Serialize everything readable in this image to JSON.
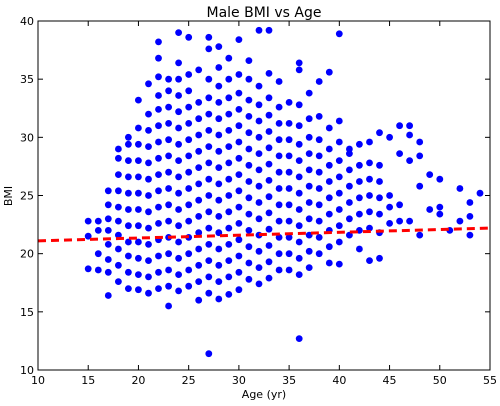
{
  "chart_data": {
    "type": "scatter",
    "title": "Male BMI vs Age",
    "xlabel": "Age (yr)",
    "ylabel": "BMI",
    "xlim": [
      10,
      55
    ],
    "ylim": [
      10,
      40
    ],
    "xticks": [
      "10",
      "15",
      "20",
      "25",
      "30",
      "35",
      "40",
      "45",
      "50",
      "55"
    ],
    "yticks": [
      "10",
      "15",
      "20",
      "25",
      "30",
      "35",
      "40"
    ],
    "grid": false,
    "legend": "none",
    "point_color": "#0000ff",
    "trend_color": "#ff0000",
    "points": [
      [
        15,
        18.7
      ],
      [
        15,
        21.5
      ],
      [
        15,
        22.8
      ],
      [
        16,
        18.6
      ],
      [
        16,
        20.0
      ],
      [
        16,
        22.0
      ],
      [
        16,
        22.8
      ],
      [
        17,
        16.4
      ],
      [
        17,
        18.4
      ],
      [
        17,
        19.5
      ],
      [
        17,
        20.8
      ],
      [
        17,
        22.0
      ],
      [
        17,
        23.0
      ],
      [
        17,
        24.2
      ],
      [
        17,
        25.4
      ],
      [
        18,
        17.6
      ],
      [
        18,
        19.0
      ],
      [
        18,
        20.4
      ],
      [
        18,
        21.6
      ],
      [
        18,
        22.8
      ],
      [
        18,
        24.0
      ],
      [
        18,
        25.4
      ],
      [
        18,
        26.8
      ],
      [
        18,
        28.2
      ],
      [
        18,
        29.0
      ],
      [
        19,
        17.0
      ],
      [
        19,
        18.4
      ],
      [
        19,
        19.8
      ],
      [
        19,
        21.0
      ],
      [
        19,
        22.4
      ],
      [
        19,
        23.8
      ],
      [
        19,
        25.2
      ],
      [
        19,
        26.6
      ],
      [
        19,
        28.0
      ],
      [
        19,
        29.4
      ],
      [
        19,
        30.0
      ],
      [
        20,
        16.9
      ],
      [
        20,
        18.2
      ],
      [
        20,
        19.6
      ],
      [
        20,
        21.0
      ],
      [
        20,
        22.4
      ],
      [
        20,
        23.8
      ],
      [
        20,
        25.2
      ],
      [
        20,
        26.6
      ],
      [
        20,
        28.0
      ],
      [
        20,
        29.4
      ],
      [
        20,
        30.8
      ],
      [
        20,
        33.2
      ],
      [
        21,
        16.6
      ],
      [
        21,
        18.0
      ],
      [
        21,
        19.4
      ],
      [
        21,
        20.8
      ],
      [
        21,
        22.2
      ],
      [
        21,
        23.6
      ],
      [
        21,
        25.0
      ],
      [
        21,
        26.4
      ],
      [
        21,
        27.8
      ],
      [
        21,
        29.2
      ],
      [
        21,
        30.6
      ],
      [
        21,
        32.0
      ],
      [
        21,
        34.6
      ],
      [
        22,
        17.0
      ],
      [
        22,
        18.4
      ],
      [
        22,
        19.8
      ],
      [
        22,
        21.2
      ],
      [
        22,
        22.6
      ],
      [
        22,
        24.0
      ],
      [
        22,
        25.4
      ],
      [
        22,
        26.8
      ],
      [
        22,
        28.2
      ],
      [
        22,
        29.6
      ],
      [
        22,
        31.0
      ],
      [
        22,
        32.4
      ],
      [
        22,
        33.6
      ],
      [
        22,
        35.2
      ],
      [
        22,
        36.8
      ],
      [
        22,
        38.2
      ],
      [
        23,
        15.5
      ],
      [
        23,
        17.2
      ],
      [
        23,
        18.6
      ],
      [
        23,
        20.0
      ],
      [
        23,
        21.4
      ],
      [
        23,
        22.8
      ],
      [
        23,
        24.2
      ],
      [
        23,
        25.6
      ],
      [
        23,
        27.0
      ],
      [
        23,
        28.4
      ],
      [
        23,
        29.8
      ],
      [
        23,
        31.2
      ],
      [
        23,
        32.6
      ],
      [
        23,
        34.0
      ],
      [
        23,
        35.0
      ],
      [
        24,
        16.8
      ],
      [
        24,
        18.2
      ],
      [
        24,
        19.6
      ],
      [
        24,
        21.0
      ],
      [
        24,
        22.4
      ],
      [
        24,
        23.8
      ],
      [
        24,
        25.2
      ],
      [
        24,
        26.6
      ],
      [
        24,
        28.0
      ],
      [
        24,
        29.4
      ],
      [
        24,
        30.8
      ],
      [
        24,
        32.2
      ],
      [
        24,
        33.6
      ],
      [
        24,
        35.0
      ],
      [
        24,
        36.4
      ],
      [
        24,
        39.0
      ],
      [
        25,
        17.2
      ],
      [
        25,
        18.6
      ],
      [
        25,
        20.0
      ],
      [
        25,
        21.4
      ],
      [
        25,
        22.8
      ],
      [
        25,
        24.2
      ],
      [
        25,
        25.6
      ],
      [
        25,
        27.0
      ],
      [
        25,
        28.4
      ],
      [
        25,
        29.8
      ],
      [
        25,
        31.2
      ],
      [
        25,
        32.6
      ],
      [
        25,
        34.0
      ],
      [
        25,
        35.4
      ],
      [
        25,
        38.6
      ],
      [
        26,
        16.0
      ],
      [
        26,
        17.6
      ],
      [
        26,
        19.0
      ],
      [
        26,
        20.4
      ],
      [
        26,
        21.8
      ],
      [
        26,
        23.2
      ],
      [
        26,
        24.6
      ],
      [
        26,
        26.0
      ],
      [
        26,
        27.4
      ],
      [
        26,
        28.8
      ],
      [
        26,
        30.2
      ],
      [
        26,
        31.6
      ],
      [
        26,
        33.0
      ],
      [
        26,
        35.8
      ],
      [
        27,
        11.4
      ],
      [
        27,
        16.6
      ],
      [
        27,
        18.0
      ],
      [
        27,
        19.4
      ],
      [
        27,
        20.8
      ],
      [
        27,
        22.2
      ],
      [
        27,
        23.6
      ],
      [
        27,
        25.0
      ],
      [
        27,
        26.4
      ],
      [
        27,
        27.8
      ],
      [
        27,
        29.2
      ],
      [
        27,
        30.6
      ],
      [
        27,
        32.0
      ],
      [
        27,
        33.4
      ],
      [
        27,
        35.0
      ],
      [
        27,
        37.6
      ],
      [
        27,
        38.6
      ],
      [
        28,
        16.1
      ],
      [
        28,
        17.6
      ],
      [
        28,
        19.0
      ],
      [
        28,
        20.4
      ],
      [
        28,
        21.8
      ],
      [
        28,
        23.2
      ],
      [
        28,
        24.6
      ],
      [
        28,
        26.0
      ],
      [
        28,
        27.4
      ],
      [
        28,
        28.8
      ],
      [
        28,
        30.2
      ],
      [
        28,
        31.6
      ],
      [
        28,
        33.0
      ],
      [
        28,
        34.4
      ],
      [
        28,
        36.0
      ],
      [
        28,
        37.8
      ],
      [
        29,
        16.5
      ],
      [
        29,
        18.0
      ],
      [
        29,
        19.4
      ],
      [
        29,
        20.8
      ],
      [
        29,
        22.2
      ],
      [
        29,
        23.6
      ],
      [
        29,
        25.0
      ],
      [
        29,
        26.4
      ],
      [
        29,
        27.8
      ],
      [
        29,
        29.2
      ],
      [
        29,
        30.6
      ],
      [
        29,
        32.0
      ],
      [
        29,
        33.4
      ],
      [
        29,
        35.0
      ],
      [
        29,
        36.8
      ],
      [
        30,
        16.9
      ],
      [
        30,
        18.4
      ],
      [
        30,
        19.8
      ],
      [
        30,
        21.2
      ],
      [
        30,
        22.6
      ],
      [
        30,
        24.0
      ],
      [
        30,
        25.4
      ],
      [
        30,
        26.8
      ],
      [
        30,
        28.2
      ],
      [
        30,
        29.6
      ],
      [
        30,
        31.0
      ],
      [
        30,
        32.4
      ],
      [
        30,
        33.8
      ],
      [
        30,
        35.4
      ],
      [
        30,
        38.4
      ],
      [
        31,
        17.8
      ],
      [
        31,
        19.2
      ],
      [
        31,
        20.6
      ],
      [
        31,
        22.0
      ],
      [
        31,
        23.4
      ],
      [
        31,
        24.8
      ],
      [
        31,
        26.2
      ],
      [
        31,
        27.6
      ],
      [
        31,
        29.0
      ],
      [
        31,
        30.4
      ],
      [
        31,
        31.8
      ],
      [
        31,
        33.2
      ],
      [
        31,
        35.0
      ],
      [
        31,
        36.6
      ],
      [
        32,
        17.4
      ],
      [
        32,
        18.8
      ],
      [
        32,
        20.2
      ],
      [
        32,
        21.6
      ],
      [
        32,
        23.0
      ],
      [
        32,
        24.4
      ],
      [
        32,
        25.8
      ],
      [
        32,
        27.2
      ],
      [
        32,
        28.6
      ],
      [
        32,
        30.0
      ],
      [
        32,
        31.4
      ],
      [
        32,
        32.8
      ],
      [
        32,
        34.4
      ],
      [
        32,
        39.2
      ],
      [
        33,
        17.9
      ],
      [
        33,
        19.3
      ],
      [
        33,
        20.7
      ],
      [
        33,
        22.1
      ],
      [
        33,
        23.5
      ],
      [
        33,
        24.9
      ],
      [
        33,
        26.3
      ],
      [
        33,
        27.7
      ],
      [
        33,
        29.1
      ],
      [
        33,
        30.5
      ],
      [
        33,
        31.9
      ],
      [
        33,
        33.4
      ],
      [
        33,
        35.5
      ],
      [
        33,
        39.2
      ],
      [
        34,
        18.6
      ],
      [
        34,
        20.0
      ],
      [
        34,
        21.4
      ],
      [
        34,
        22.8
      ],
      [
        34,
        24.2
      ],
      [
        34,
        25.6
      ],
      [
        34,
        27.0
      ],
      [
        34,
        28.4
      ],
      [
        34,
        29.8
      ],
      [
        34,
        31.2
      ],
      [
        34,
        32.6
      ],
      [
        34,
        34.8
      ],
      [
        35,
        18.6
      ],
      [
        35,
        20.0
      ],
      [
        35,
        21.4
      ],
      [
        35,
        22.8
      ],
      [
        35,
        24.2
      ],
      [
        35,
        25.6
      ],
      [
        35,
        27.0
      ],
      [
        35,
        28.4
      ],
      [
        35,
        29.8
      ],
      [
        35,
        31.2
      ],
      [
        35,
        33.0
      ],
      [
        36,
        12.7
      ],
      [
        36,
        18.2
      ],
      [
        36,
        19.6
      ],
      [
        36,
        21.0
      ],
      [
        36,
        22.4
      ],
      [
        36,
        23.8
      ],
      [
        36,
        25.2
      ],
      [
        36,
        26.6
      ],
      [
        36,
        28.0
      ],
      [
        36,
        29.4
      ],
      [
        36,
        31.0
      ],
      [
        36,
        32.8
      ],
      [
        36,
        35.8
      ],
      [
        36,
        36.4
      ],
      [
        37,
        18.8
      ],
      [
        37,
        20.2
      ],
      [
        37,
        21.6
      ],
      [
        37,
        23.0
      ],
      [
        37,
        24.4
      ],
      [
        37,
        25.8
      ],
      [
        37,
        27.2
      ],
      [
        37,
        28.6
      ],
      [
        37,
        30.0
      ],
      [
        37,
        31.6
      ],
      [
        37,
        33.8
      ],
      [
        38,
        20.0
      ],
      [
        38,
        21.4
      ],
      [
        38,
        22.8
      ],
      [
        38,
        24.2
      ],
      [
        38,
        25.6
      ],
      [
        38,
        27.0
      ],
      [
        38,
        28.4
      ],
      [
        38,
        29.8
      ],
      [
        38,
        31.8
      ],
      [
        38,
        34.8
      ],
      [
        39,
        19.2
      ],
      [
        39,
        20.6
      ],
      [
        39,
        22.0
      ],
      [
        39,
        23.4
      ],
      [
        39,
        24.8
      ],
      [
        39,
        26.2
      ],
      [
        39,
        27.6
      ],
      [
        39,
        29.0
      ],
      [
        39,
        30.8
      ],
      [
        39,
        35.6
      ],
      [
        40,
        19.1
      ],
      [
        40,
        21.0
      ],
      [
        40,
        22.4
      ],
      [
        40,
        23.8
      ],
      [
        40,
        25.2
      ],
      [
        40,
        26.6
      ],
      [
        40,
        28.0
      ],
      [
        40,
        29.6
      ],
      [
        40,
        31.4
      ],
      [
        40,
        38.9
      ],
      [
        41,
        21.6
      ],
      [
        41,
        23.0
      ],
      [
        41,
        24.4
      ],
      [
        41,
        25.8
      ],
      [
        41,
        27.2
      ],
      [
        41,
        28.6
      ],
      [
        41,
        29.0
      ],
      [
        42,
        20.4
      ],
      [
        42,
        22.0
      ],
      [
        42,
        23.4
      ],
      [
        42,
        24.8
      ],
      [
        42,
        26.2
      ],
      [
        42,
        27.6
      ],
      [
        42,
        29.4
      ],
      [
        43,
        19.4
      ],
      [
        43,
        22.2
      ],
      [
        43,
        23.6
      ],
      [
        43,
        25.0
      ],
      [
        43,
        26.4
      ],
      [
        43,
        27.8
      ],
      [
        43,
        29.6
      ],
      [
        44,
        19.6
      ],
      [
        44,
        21.8
      ],
      [
        44,
        23.4
      ],
      [
        44,
        24.8
      ],
      [
        44,
        26.2
      ],
      [
        44,
        27.6
      ],
      [
        44,
        30.4
      ],
      [
        45,
        22.6
      ],
      [
        45,
        24.0
      ],
      [
        45,
        25.0
      ],
      [
        45,
        30.0
      ],
      [
        46,
        22.8
      ],
      [
        46,
        24.2
      ],
      [
        46,
        28.6
      ],
      [
        46,
        31.0
      ],
      [
        47,
        22.8
      ],
      [
        47,
        28.0
      ],
      [
        47,
        30.2
      ],
      [
        47,
        31.0
      ],
      [
        48,
        21.6
      ],
      [
        48,
        25.8
      ],
      [
        48,
        28.4
      ],
      [
        48,
        29.6
      ],
      [
        49,
        23.8
      ],
      [
        49,
        26.8
      ],
      [
        50,
        23.4
      ],
      [
        50,
        24.0
      ],
      [
        50,
        26.4
      ],
      [
        51,
        22.0
      ],
      [
        52,
        22.8
      ],
      [
        52,
        25.6
      ],
      [
        53,
        21.6
      ],
      [
        53,
        23.2
      ],
      [
        53,
        24.4
      ],
      [
        54,
        25.2
      ]
    ],
    "trend_line": {
      "style": "dashed",
      "x": [
        10,
        55
      ],
      "y": [
        21.1,
        22.2
      ]
    }
  }
}
